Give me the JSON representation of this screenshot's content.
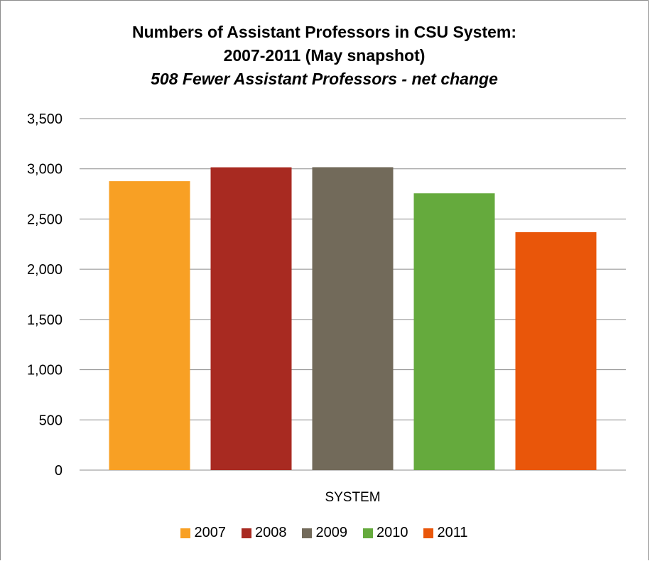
{
  "chart_data": {
    "type": "bar",
    "title": "Numbers of Assistant Professors in CSU System:",
    "title_line2": "2007-2011 (May snapshot)",
    "subtitle": "508 Fewer Assistant Professors - net change",
    "categories": [
      "SYSTEM"
    ],
    "series": [
      {
        "name": "2007",
        "values": [
          2877
        ],
        "color": "#f8a024"
      },
      {
        "name": "2008",
        "values": [
          3015
        ],
        "color": "#a82a21"
      },
      {
        "name": "2009",
        "values": [
          3016
        ],
        "color": "#726a5a"
      },
      {
        "name": "2010",
        "values": [
          2756
        ],
        "color": "#65aa3d"
      },
      {
        "name": "2011",
        "values": [
          2369
        ],
        "color": "#e9560a"
      }
    ],
    "ylim": [
      0,
      3500
    ],
    "yticks": [
      0,
      500,
      1000,
      1500,
      2000,
      2500,
      3000,
      3500
    ],
    "ytick_labels": [
      "0",
      "500",
      "1,000",
      "1,500",
      "2,000",
      "2,500",
      "3,000",
      "3,500"
    ],
    "xlabel": "",
    "ylabel": "",
    "grid": true,
    "legend_position": "bottom"
  }
}
